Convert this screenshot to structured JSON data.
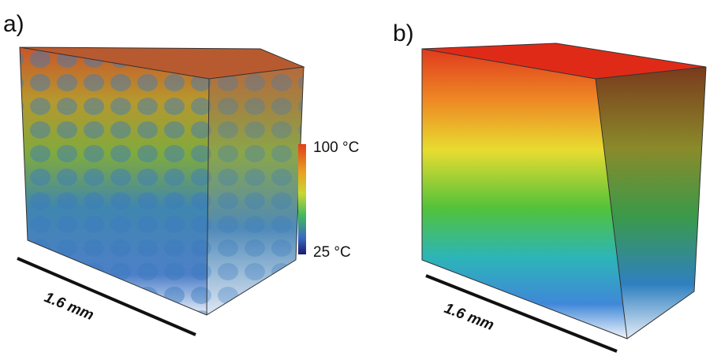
{
  "panels": [
    {
      "label": "a)",
      "scale_label": "1.6 mm"
    },
    {
      "label": "b)",
      "scale_label": "1.6 mm"
    }
  ],
  "colorbar": {
    "max_label": "100 °C",
    "min_label": "25 °C"
  }
}
